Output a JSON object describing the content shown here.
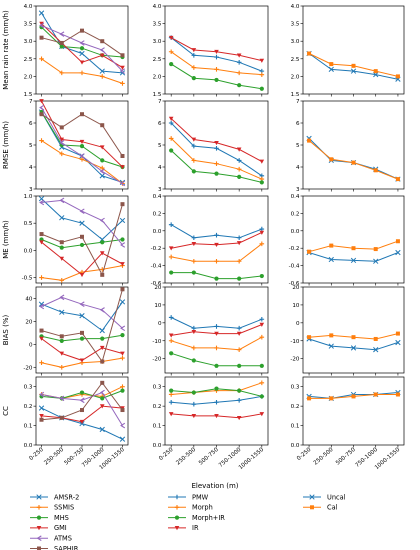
{
  "figure": {
    "xlabel": "Elevation (m)"
  },
  "colors": {
    "AMSR-2": "#1f77b4",
    "SSMIS": "#ff7f0e",
    "MHS": "#2ca02c",
    "GMI": "#d62728",
    "ATMS": "#9467bd",
    "SAPHIR": "#8c564b",
    "PMW": "#1f77b4",
    "Morph": "#ff7f0e",
    "Morph+IR": "#2ca02c",
    "IR": "#d62728",
    "Uncal": "#1f77b4",
    "Cal": "#ff7f0e"
  },
  "markers": {
    "AMSR-2": "x",
    "SSMIS": "plus",
    "MHS": "dot",
    "GMI": "triangle",
    "ATMS": "chevron",
    "SAPHIR": "square",
    "PMW": "plus",
    "Morph": "plus",
    "Morph+IR": "dot",
    "IR": "triangle",
    "Uncal": "x",
    "Cal": "square"
  },
  "legend": {
    "col1": [
      "AMSR-2",
      "SSMIS",
      "MHS",
      "GMI",
      "ATMS",
      "SAPHIR"
    ],
    "col2": [
      "PMW",
      "Morph",
      "Morph+IR",
      "IR"
    ],
    "col3": [
      "Uncal",
      "Cal"
    ]
  },
  "chart_data": [
    {
      "type": "line",
      "row": 0,
      "col": 0,
      "ylabel": "Mean rain rate (mm/h)",
      "categories": [
        "0-250",
        "250-500",
        "500-750",
        "750-1000",
        "1000-1550"
      ],
      "ylim": [
        1.5,
        4.0
      ],
      "yticks": [
        "1.5",
        "2.0",
        "2.5",
        "3.0",
        "3.5",
        "4.0"
      ],
      "series": [
        {
          "name": "AMSR-2",
          "values": [
            3.8,
            2.85,
            2.65,
            2.15,
            2.1
          ]
        },
        {
          "name": "SSMIS",
          "values": [
            2.5,
            2.1,
            2.1,
            2.0,
            1.8
          ]
        },
        {
          "name": "MHS",
          "values": [
            3.4,
            2.85,
            2.8,
            2.6,
            2.55
          ]
        },
        {
          "name": "GMI",
          "values": [
            3.5,
            2.95,
            2.4,
            2.6,
            2.25
          ]
        },
        {
          "name": "ATMS",
          "values": [
            3.45,
            3.2,
            2.95,
            2.75,
            2.15
          ]
        },
        {
          "name": "SAPHIR",
          "values": [
            3.1,
            2.95,
            3.3,
            3.0,
            2.6
          ]
        }
      ]
    },
    {
      "type": "line",
      "row": 0,
      "col": 1,
      "ylabel": "",
      "categories": [
        "0-250",
        "250-500",
        "500-750",
        "750-1000",
        "1000-1550"
      ],
      "ylim": [
        1.5,
        4.0
      ],
      "yticks": [
        "1.5",
        "2.0",
        "2.5",
        "3.0",
        "3.5",
        "4.0"
      ],
      "series": [
        {
          "name": "PMW",
          "values": [
            3.1,
            2.6,
            2.55,
            2.4,
            2.15
          ]
        },
        {
          "name": "Morph",
          "values": [
            2.7,
            2.25,
            2.2,
            2.1,
            2.05
          ]
        },
        {
          "name": "Morph+IR",
          "values": [
            2.35,
            1.95,
            1.9,
            1.75,
            1.65
          ]
        },
        {
          "name": "IR",
          "values": [
            3.1,
            2.75,
            2.7,
            2.6,
            2.45
          ]
        }
      ]
    },
    {
      "type": "line",
      "row": 0,
      "col": 2,
      "ylabel": "",
      "categories": [
        "0-250",
        "250-500",
        "500-750",
        "750-1000",
        "1000-1550"
      ],
      "ylim": [
        1.5,
        4.0
      ],
      "yticks": [
        "1.5",
        "2.0",
        "2.5",
        "3.0",
        "3.5",
        "4.0"
      ],
      "series": [
        {
          "name": "Uncal",
          "values": [
            2.65,
            2.2,
            2.15,
            2.05,
            1.92
          ]
        },
        {
          "name": "Cal",
          "values": [
            2.65,
            2.35,
            2.3,
            2.15,
            2.0
          ]
        }
      ]
    },
    {
      "type": "line",
      "row": 1,
      "col": 0,
      "ylabel": "RMSE (mm/h)",
      "categories": [
        "0-250",
        "250-500",
        "500-750",
        "750-1000",
        "1000-1550"
      ],
      "ylim": [
        3,
        7
      ],
      "yticks": [
        "3",
        "4",
        "5",
        "6",
        "7"
      ],
      "series": [
        {
          "name": "AMSR-2",
          "values": [
            6.5,
            4.9,
            4.5,
            3.6,
            3.3
          ]
        },
        {
          "name": "SSMIS",
          "values": [
            5.2,
            4.6,
            4.35,
            3.95,
            3.25
          ]
        },
        {
          "name": "MHS",
          "values": [
            6.5,
            5.0,
            4.95,
            4.3,
            4.0
          ]
        },
        {
          "name": "GMI",
          "values": [
            7.0,
            5.25,
            5.15,
            4.9,
            4.0
          ]
        },
        {
          "name": "ATMS",
          "values": [
            6.7,
            5.1,
            4.5,
            3.8,
            3.25
          ]
        },
        {
          "name": "SAPHIR",
          "values": [
            6.4,
            5.8,
            6.4,
            5.9,
            4.5
          ]
        }
      ]
    },
    {
      "type": "line",
      "row": 1,
      "col": 1,
      "ylabel": "",
      "categories": [
        "0-250",
        "250-500",
        "500-750",
        "750-1000",
        "1000-1550"
      ],
      "ylim": [
        3,
        7
      ],
      "yticks": [
        "3",
        "4",
        "5",
        "6",
        "7"
      ],
      "series": [
        {
          "name": "PMW",
          "values": [
            6.0,
            4.95,
            4.85,
            4.3,
            3.6
          ]
        },
        {
          "name": "Morph",
          "values": [
            5.3,
            4.3,
            4.15,
            3.9,
            3.45
          ]
        },
        {
          "name": "Morph+IR",
          "values": [
            4.75,
            3.8,
            3.7,
            3.55,
            3.3
          ]
        },
        {
          "name": "IR",
          "values": [
            6.2,
            5.25,
            5.1,
            4.8,
            4.25
          ]
        }
      ]
    },
    {
      "type": "line",
      "row": 1,
      "col": 2,
      "ylabel": "",
      "categories": [
        "0-250",
        "250-500",
        "500-750",
        "750-1000",
        "1000-1550"
      ],
      "ylim": [
        3,
        7
      ],
      "yticks": [
        "3",
        "4",
        "5",
        "6",
        "7"
      ],
      "series": [
        {
          "name": "Uncal",
          "values": [
            5.3,
            4.3,
            4.2,
            3.9,
            3.45
          ]
        },
        {
          "name": "Cal",
          "values": [
            5.2,
            4.35,
            4.2,
            3.85,
            3.45
          ]
        }
      ]
    },
    {
      "type": "line",
      "row": 2,
      "col": 0,
      "ylabel": "ME (mm/h)",
      "categories": [
        "0-250",
        "250-500",
        "500-750",
        "750-1000",
        "1000-1550"
      ],
      "ylim": [
        -0.6,
        1.0
      ],
      "yticks": [
        "-0.5",
        "0.0",
        "0.5",
        "1.0"
      ],
      "series": [
        {
          "name": "AMSR-2",
          "values": [
            0.95,
            0.6,
            0.5,
            0.2,
            0.55
          ]
        },
        {
          "name": "SSMIS",
          "values": [
            -0.5,
            -0.55,
            -0.4,
            -0.35,
            -0.28
          ]
        },
        {
          "name": "MHS",
          "values": [
            0.2,
            0.05,
            0.1,
            0.15,
            0.2
          ]
        },
        {
          "name": "GMI",
          "values": [
            0.15,
            -0.15,
            -0.45,
            -0.05,
            -0.25
          ]
        },
        {
          "name": "ATMS",
          "values": [
            0.88,
            0.92,
            0.72,
            0.55,
            0.1
          ]
        },
        {
          "name": "SAPHIR",
          "values": [
            0.3,
            0.15,
            0.25,
            -0.45,
            0.85
          ]
        }
      ]
    },
    {
      "type": "line",
      "row": 2,
      "col": 1,
      "ylabel": "",
      "categories": [
        "0-250",
        "250-500",
        "500-750",
        "750-1000",
        "1000-1550"
      ],
      "ylim": [
        -0.6,
        0.4
      ],
      "yticks": [
        "-0.6",
        "-0.4",
        "-0.2",
        "0.0",
        "0.2",
        "0.4"
      ],
      "series": [
        {
          "name": "PMW",
          "values": [
            0.07,
            -0.08,
            -0.05,
            -0.08,
            0.02
          ]
        },
        {
          "name": "Morph",
          "values": [
            -0.3,
            -0.35,
            -0.35,
            -0.35,
            -0.15
          ]
        },
        {
          "name": "Morph+IR",
          "values": [
            -0.48,
            -0.48,
            -0.55,
            -0.55,
            -0.52
          ]
        },
        {
          "name": "IR",
          "values": [
            -0.2,
            -0.15,
            -0.16,
            -0.14,
            -0.02
          ]
        }
      ]
    },
    {
      "type": "line",
      "row": 2,
      "col": 2,
      "ylabel": "",
      "categories": [
        "0-250",
        "250-500",
        "500-750",
        "750-1000",
        "1000-1550"
      ],
      "ylim": [
        -0.6,
        0.4
      ],
      "yticks": [
        "-0.6",
        "-0.4",
        "-0.2",
        "0.0",
        "0.2",
        "0.4"
      ],
      "series": [
        {
          "name": "Uncal",
          "values": [
            -0.25,
            -0.33,
            -0.34,
            -0.35,
            -0.25
          ]
        },
        {
          "name": "Cal",
          "values": [
            -0.24,
            -0.17,
            -0.2,
            -0.21,
            -0.12
          ]
        }
      ]
    },
    {
      "type": "line",
      "row": 3,
      "col": 0,
      "ylabel": "BIAS (%)",
      "categories": [
        "0-250",
        "250-500",
        "500-750",
        "750-1000",
        "1000-1550"
      ],
      "ylim": [
        -25,
        50
      ],
      "yticks": [
        "-20",
        "0",
        "20",
        "40"
      ],
      "series": [
        {
          "name": "AMSR-2",
          "values": [
            35,
            28,
            25,
            12,
            37
          ]
        },
        {
          "name": "SSMIS",
          "values": [
            -16,
            -20,
            -16,
            -15,
            -12
          ]
        },
        {
          "name": "MHS",
          "values": [
            7,
            3,
            5,
            5,
            8
          ]
        },
        {
          "name": "GMI",
          "values": [
            5,
            -8,
            -14,
            -3,
            -8
          ]
        },
        {
          "name": "ATMS",
          "values": [
            33,
            41,
            35,
            30,
            14
          ]
        },
        {
          "name": "SAPHIR",
          "values": [
            12,
            7,
            10,
            -15,
            48
          ]
        }
      ]
    },
    {
      "type": "line",
      "row": 3,
      "col": 1,
      "ylabel": "",
      "categories": [
        "0-250",
        "250-500",
        "500-750",
        "750-1000",
        "1000-1550"
      ],
      "ylim": [
        -28,
        20
      ],
      "yticks": [
        "-20",
        "-10",
        "0",
        "10",
        "20"
      ],
      "series": [
        {
          "name": "PMW",
          "values": [
            3,
            -3,
            -2,
            -3,
            2
          ]
        },
        {
          "name": "Morph",
          "values": [
            -10,
            -14,
            -14,
            -15,
            -8
          ]
        },
        {
          "name": "Morph+IR",
          "values": [
            -17,
            -21,
            -24,
            -24,
            -24
          ]
        },
        {
          "name": "IR",
          "values": [
            -7,
            -5,
            -6,
            -6,
            -1
          ]
        }
      ]
    },
    {
      "type": "line",
      "row": 3,
      "col": 2,
      "ylabel": "",
      "categories": [
        "0-250",
        "250-500",
        "500-750",
        "750-1000",
        "1000-1550"
      ],
      "ylim": [
        -28,
        20
      ],
      "yticks": [
        "-20",
        "-10",
        "0",
        "10",
        "20"
      ],
      "series": [
        {
          "name": "Uncal",
          "values": [
            -9,
            -13,
            -14,
            -15,
            -11
          ]
        },
        {
          "name": "Cal",
          "values": [
            -8,
            -7,
            -8,
            -9,
            -6
          ]
        }
      ]
    },
    {
      "type": "line",
      "row": 4,
      "col": 0,
      "ylabel": "CC",
      "categories": [
        "0-250",
        "250-500",
        "500-750",
        "750-1000",
        "1000-1550"
      ],
      "ylim": [
        0,
        0.35
      ],
      "yticks": [
        "0.0",
        "0.1",
        "0.2",
        "0.3"
      ],
      "series": [
        {
          "name": "AMSR-2",
          "values": [
            0.19,
            0.14,
            0.11,
            0.08,
            0.03
          ]
        },
        {
          "name": "SSMIS",
          "values": [
            0.26,
            0.24,
            0.26,
            0.25,
            0.3
          ]
        },
        {
          "name": "MHS",
          "values": [
            0.25,
            0.24,
            0.27,
            0.24,
            0.28
          ]
        },
        {
          "name": "GMI",
          "values": [
            0.15,
            0.14,
            0.12,
            0.2,
            0.19
          ]
        },
        {
          "name": "ATMS",
          "values": [
            0.26,
            0.24,
            0.23,
            0.27,
            0.1
          ]
        },
        {
          "name": "SAPHIR",
          "values": [
            0.13,
            0.14,
            0.18,
            0.32,
            0.18
          ]
        }
      ]
    },
    {
      "type": "line",
      "row": 4,
      "col": 1,
      "ylabel": "",
      "categories": [
        "0-250",
        "250-500",
        "500-750",
        "750-1000",
        "1000-1550"
      ],
      "ylim": [
        0,
        0.35
      ],
      "yticks": [
        "0.0",
        "0.1",
        "0.2",
        "0.3"
      ],
      "series": [
        {
          "name": "PMW",
          "values": [
            0.22,
            0.21,
            0.22,
            0.23,
            0.25
          ]
        },
        {
          "name": "Morph",
          "values": [
            0.26,
            0.27,
            0.28,
            0.28,
            0.32
          ]
        },
        {
          "name": "Morph+IR",
          "values": [
            0.28,
            0.27,
            0.29,
            0.28,
            0.25
          ]
        },
        {
          "name": "IR",
          "values": [
            0.16,
            0.15,
            0.15,
            0.14,
            0.16
          ]
        }
      ]
    },
    {
      "type": "line",
      "row": 4,
      "col": 2,
      "ylabel": "",
      "categories": [
        "0-250",
        "250-500",
        "500-750",
        "750-1000",
        "1000-1550"
      ],
      "ylim": [
        0,
        0.35
      ],
      "yticks": [
        "0.0",
        "0.1",
        "0.2",
        "0.3"
      ],
      "series": [
        {
          "name": "Uncal",
          "values": [
            0.25,
            0.24,
            0.26,
            0.26,
            0.27
          ]
        },
        {
          "name": "Cal",
          "values": [
            0.24,
            0.24,
            0.25,
            0.26,
            0.26
          ]
        }
      ]
    }
  ]
}
